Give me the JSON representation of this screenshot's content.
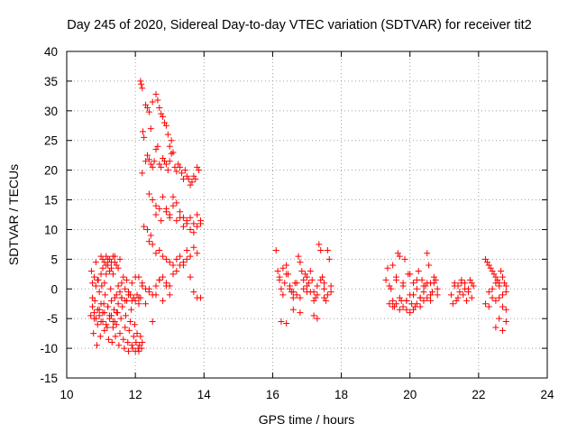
{
  "chart_data": {
    "type": "scatter",
    "title": "Day 245 of 2020, Sidereal Day-to-day VTEC variation (SDTVAR) for receiver tit2",
    "xlabel": "GPS time / hours",
    "ylabel": "SDTVAR / TECUs",
    "xlim": [
      10,
      24
    ],
    "ylim": [
      -15,
      40
    ],
    "xticks": [
      "10",
      "12",
      "14",
      "16",
      "18",
      "20",
      "22",
      "24"
    ],
    "yticks": [
      "-15",
      "-10",
      "-5",
      "0",
      "5",
      "10",
      "15",
      "20",
      "25",
      "30",
      "35",
      "40"
    ],
    "grid": true,
    "marker": "+",
    "color": "#ff0000",
    "series": [
      {
        "name": "tit2",
        "x": [
          10.7,
          10.72,
          10.75,
          10.78,
          10.8,
          10.82,
          10.85,
          10.88,
          10.9,
          10.92,
          10.95,
          10.98,
          11.0,
          11.02,
          11.05,
          11.08,
          11.1,
          11.12,
          11.15,
          11.18,
          11.2,
          11.22,
          11.25,
          11.28,
          11.3,
          11.32,
          11.35,
          11.38,
          11.4,
          11.42,
          11.45,
          11.48,
          11.5,
          11.52,
          11.55,
          11.58,
          11.6,
          11.62,
          11.65,
          11.68,
          11.7,
          11.72,
          11.75,
          11.78,
          11.8,
          11.82,
          11.85,
          11.88,
          11.9,
          11.92,
          11.95,
          11.98,
          12.0,
          12.02,
          12.05,
          12.08,
          12.1,
          12.12,
          12.15,
          12.18,
          12.2,
          10.75,
          10.8,
          10.85,
          10.9,
          10.95,
          11.0,
          11.05,
          11.1,
          11.15,
          11.2,
          11.25,
          11.3,
          11.35,
          11.4,
          11.45,
          11.5,
          11.55,
          10.75,
          10.8,
          10.85,
          10.9,
          10.95,
          11.0,
          11.05,
          11.1,
          11.15,
          11.2,
          11.25,
          11.3,
          11.35,
          11.4,
          11.45,
          11.0,
          11.05,
          11.1,
          11.15,
          11.2,
          11.25,
          11.3,
          11.35,
          11.4,
          11.45,
          11.5,
          11.55,
          11.6,
          11.65,
          11.7,
          11.75,
          11.8,
          11.85,
          11.9,
          11.95,
          12.0,
          12.05,
          12.1,
          12.15,
          11.6,
          11.7,
          11.8,
          11.9,
          12.0,
          12.1,
          12.2,
          12.3,
          12.4,
          12.5,
          12.6,
          12.7,
          12.8,
          12.9,
          13.0,
          12.15,
          12.17,
          12.2,
          12.22,
          12.25,
          12.3,
          12.35,
          12.4,
          12.45,
          12.5,
          12.6,
          12.65,
          12.7,
          12.75,
          12.8,
          12.85,
          12.9,
          12.95,
          13.0,
          13.05,
          12.35,
          12.4,
          12.45,
          12.5,
          12.55,
          12.6,
          12.65,
          12.7,
          12.75,
          12.8,
          12.85,
          12.9,
          12.95,
          13.0,
          13.05,
          13.1,
          13.15,
          13.2,
          13.25,
          13.3,
          13.35,
          13.4,
          13.45,
          13.5,
          13.55,
          13.6,
          13.65,
          13.7,
          13.75,
          13.8,
          13.85,
          12.2,
          12.3,
          12.4,
          12.5,
          12.6,
          12.7,
          12.8,
          12.9,
          13.0,
          13.1,
          13.2,
          13.3,
          13.4,
          13.5,
          13.6,
          13.7,
          13.8,
          13.9,
          12.25,
          12.35,
          12.45,
          12.6,
          12.75,
          12.9,
          13.0,
          13.1,
          13.2,
          13.3,
          13.4,
          13.5,
          13.6,
          13.7,
          13.8,
          13.9,
          12.4,
          12.5,
          12.6,
          12.7,
          12.8,
          12.9,
          13.0,
          13.1,
          13.2,
          13.3,
          13.4,
          13.5,
          13.6,
          13.7,
          13.8,
          12.1,
          12.2,
          12.3,
          12.4,
          12.5,
          12.6,
          12.7,
          12.8,
          12.9,
          13.0,
          13.1,
          13.2,
          13.3,
          13.4,
          13.5,
          13.6,
          13.7,
          13.8,
          13.9,
          16.1,
          16.15,
          16.2,
          16.25,
          16.3,
          16.35,
          16.4,
          16.45,
          16.5,
          16.55,
          16.6,
          16.65,
          16.7,
          16.75,
          16.8,
          16.85,
          16.9,
          16.95,
          17.0,
          17.05,
          17.1,
          17.15,
          17.2,
          17.25,
          17.3,
          17.35,
          17.4,
          17.45,
          17.5,
          17.55,
          17.6,
          17.65,
          17.7,
          16.2,
          16.3,
          16.4,
          16.5,
          16.6,
          16.7,
          16.8,
          16.9,
          17.0,
          17.1,
          17.2,
          17.3,
          17.4,
          17.5,
          17.6,
          17.7,
          16.25,
          16.4,
          16.6,
          16.8,
          17.0,
          17.2,
          17.3,
          17.5,
          19.3,
          19.35,
          19.4,
          19.45,
          19.5,
          19.55,
          19.6,
          19.65,
          19.7,
          19.75,
          19.8,
          19.85,
          19.9,
          19.95,
          20.0,
          20.05,
          20.1,
          20.15,
          20.2,
          20.25,
          20.3,
          20.35,
          20.4,
          20.45,
          20.5,
          20.55,
          20.6,
          20.65,
          20.7,
          20.75,
          20.8,
          19.4,
          19.5,
          19.6,
          19.7,
          19.8,
          19.9,
          20.0,
          20.1,
          20.2,
          20.3,
          20.4,
          20.5,
          20.6,
          20.7,
          20.8,
          19.5,
          19.6,
          19.7,
          19.8,
          19.9,
          20.0,
          20.1,
          20.2,
          20.3,
          20.4,
          20.5,
          20.6,
          21.2,
          21.25,
          21.3,
          21.35,
          21.4,
          21.45,
          21.5,
          21.55,
          21.6,
          21.65,
          21.7,
          21.75,
          21.8,
          21.85,
          21.3,
          21.4,
          21.5,
          21.6,
          21.7,
          21.8,
          22.2,
          22.25,
          22.3,
          22.35,
          22.4,
          22.45,
          22.5,
          22.55,
          22.6,
          22.65,
          22.7,
          22.75,
          22.8,
          22.2,
          22.3,
          22.4,
          22.5,
          22.6,
          22.7,
          22.8,
          22.3,
          22.4,
          22.5,
          22.6,
          22.7,
          22.8,
          22.5,
          22.6,
          22.7,
          22.8
        ],
        "y": [
          -4.5,
          3.0,
          -1.5,
          -7.5,
          -5.0,
          -2.0,
          4.5,
          -9.5,
          -6.0,
          1.5,
          -3.5,
          -8.0,
          -5.5,
          0.5,
          -4.0,
          -2.5,
          -7.0,
          -1.0,
          2.5,
          -6.5,
          -3.0,
          -8.5,
          -4.5,
          0.0,
          -2.0,
          -9.0,
          -5.5,
          -3.5,
          -1.5,
          -8.0,
          -6.0,
          -4.0,
          -2.5,
          -9.5,
          -7.5,
          -5.0,
          -1.5,
          -3.0,
          -8.5,
          -10.0,
          -6.5,
          -4.5,
          -2.0,
          -9.0,
          -10.5,
          -7.0,
          -5.5,
          -3.5,
          -9.5,
          -10.0,
          -8.0,
          -6.0,
          -10.5,
          -9.0,
          -7.5,
          -10.0,
          -10.5,
          -9.5,
          -8.0,
          -10.0,
          -9.0,
          1.0,
          2.0,
          0.5,
          1.5,
          -0.5,
          2.5,
          3.5,
          1.0,
          4.0,
          5.0,
          3.0,
          4.5,
          2.5,
          5.5,
          4.0,
          3.5,
          5.0,
          -3.0,
          -4.0,
          -5.0,
          -3.5,
          -4.5,
          -2.5,
          -5.5,
          -4.0,
          -6.0,
          -3.0,
          -5.0,
          -4.5,
          -6.5,
          -5.5,
          -4.0,
          5.5,
          5.0,
          4.5,
          5.5,
          4.0,
          5.0,
          3.5,
          5.5,
          4.5,
          -1.0,
          0.5,
          -0.5,
          1.0,
          2.0,
          0.0,
          1.5,
          -0.5,
          -1.0,
          -2.0,
          -1.5,
          -2.0,
          -1.0,
          -2.5,
          -1.5,
          -1.5,
          -2.0,
          -1.0,
          1.0,
          2.0,
          -1.5,
          0.5,
          -2.5,
          0.0,
          -5.5,
          -1.0,
          1.5,
          -2.0,
          0.5,
          -1.0,
          35.0,
          34.5,
          33.8,
          26.5,
          25.5,
          31.0,
          30.5,
          29.8,
          27.0,
          31.5,
          32.8,
          31.8,
          30.5,
          29.5,
          29.0,
          28.0,
          27.5,
          26.0,
          24.0,
          25.0,
          22.5,
          21.8,
          21.0,
          20.5,
          21.5,
          23.5,
          24.0,
          21.0,
          20.5,
          22.0,
          21.5,
          21.0,
          20.0,
          21.5,
          22.8,
          23.0,
          20.5,
          19.8,
          21.0,
          20.5,
          19.5,
          18.5,
          20.0,
          19.0,
          18.5,
          17.5,
          18.0,
          19.0,
          18.5,
          20.5,
          20.0,
          19.5,
          21.5,
          16.0,
          15.0,
          14.0,
          13.5,
          15.5,
          13.0,
          12.5,
          15.5,
          14.5,
          13.0,
          12.0,
          11.5,
          12.0,
          11.0,
          12.5,
          11.5,
          10.5,
          10.0,
          9.0,
          12.5,
          11.5,
          13.5,
          12.0,
          14.0,
          11.5,
          12.0,
          10.5,
          11.0,
          10.0,
          9.5,
          10.5,
          11.0,
          8.0,
          7.5,
          6.0,
          6.5,
          5.5,
          5.0,
          4.5,
          4.0,
          5.0,
          5.5,
          4.0,
          6.5,
          5.5,
          7.0,
          6.0,
          2.0,
          1.0,
          0.0,
          -0.5,
          -1.0,
          0.5,
          1.5,
          2.0,
          1.0,
          0.5,
          2.5,
          3.0,
          4.0,
          4.5,
          5.0,
          2.0,
          -0.5,
          -1.5,
          -1.5,
          6.5,
          3.0,
          2.0,
          0.0,
          3.5,
          1.0,
          4.0,
          2.5,
          0.0,
          -0.5,
          -1.5,
          1.0,
          -1.0,
          5.5,
          4.5,
          3.0,
          1.5,
          2.5,
          -0.5,
          1.0,
          3.0,
          1.5,
          -0.5,
          -1.5,
          -1.0,
          7.5,
          6.5,
          2.0,
          1.0,
          -2.0,
          6.5,
          5.0,
          0.5,
          1.5,
          -1.0,
          2.5,
          0.5,
          -0.5,
          1.0,
          -1.5,
          0.0,
          2.0,
          -0.5,
          -2.0,
          0.5,
          1.5,
          0.0,
          -1.0,
          -0.5,
          -5.5,
          -5.8,
          -3.5,
          -4.0,
          0.5,
          -4.5,
          -5.0,
          -1.5,
          1.5,
          3.5,
          -2.5,
          0.0,
          4.0,
          -3.0,
          2.0,
          6.0,
          5.5,
          -2.0,
          0.5,
          5.0,
          -3.5,
          2.5,
          -1.0,
          -2.5,
          1.0,
          -3.0,
          0.0,
          3.0,
          -1.5,
          1.5,
          -0.5,
          0.5,
          6.0,
          4.0,
          1.0,
          -0.5,
          2.0,
          1.5,
          -1.0,
          0.5,
          -2.0,
          1.5,
          -1.5,
          1.0,
          -2.0,
          2.5,
          -1.0,
          1.5,
          -1.5,
          0.5,
          1.0,
          -2.0,
          1.0,
          0.0,
          -3.0,
          -2.5,
          -3.5,
          -3.0,
          -2.0,
          -4.0,
          -3.5,
          -2.5,
          -3.0,
          -2.0,
          -1.5,
          -1.0,
          -1.0,
          -2.5,
          0.5,
          -2.0,
          -1.5,
          -0.5,
          1.0,
          -1.0,
          0.0,
          -2.0,
          -0.5,
          1.5,
          -1.5,
          0.5,
          1.0,
          0.5,
          1.5,
          1.0,
          0.0,
          1.0,
          5.0,
          4.5,
          4.0,
          3.5,
          3.0,
          2.5,
          2.0,
          1.5,
          1.0,
          3.0,
          2.0,
          1.0,
          0.5,
          -2.5,
          -3.0,
          -1.5,
          -2.0,
          0.5,
          -1.0,
          -0.5,
          -0.5,
          0.0,
          1.0,
          -1.5,
          -3.0,
          -3.5,
          -6.5,
          -5.0,
          -7.0,
          -5.5
        ]
      }
    ]
  }
}
